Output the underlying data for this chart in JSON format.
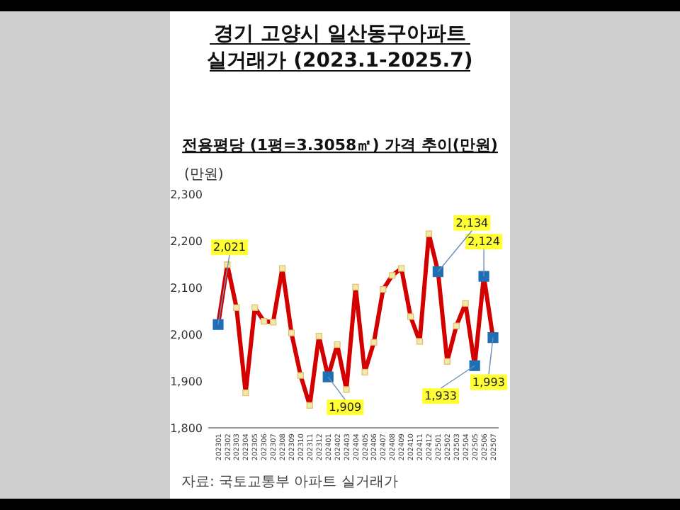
{
  "chart_data": {
    "type": "line",
    "title": "경기 고양시 일산동구아파트 실거래가 (2023.1-2025.7)",
    "subtitle": "전용평당 (1평=3.3058㎡) 가격 추이(만원)",
    "ylabel": "(만원)",
    "annotations": [
      "자료: 국토교통부 아파트 실거래가"
    ],
    "categories": [
      "202301",
      "202302",
      "202303",
      "202304",
      "202305",
      "202306",
      "202307",
      "202308",
      "202309",
      "202310",
      "202311",
      "202312",
      "202401",
      "202402",
      "202403",
      "202404",
      "202405",
      "202406",
      "202407",
      "202408",
      "202409",
      "202410",
      "202411",
      "202412",
      "202501",
      "202502",
      "202503",
      "202504",
      "202505",
      "202506",
      "202507"
    ],
    "series": [
      {
        "color": "#d40000",
        "values": [
          2021,
          2149,
          2057,
          1875,
          2057,
          2028,
          2026,
          2141,
          2003,
          1912,
          1848,
          1996,
          1909,
          1978,
          1882,
          2101,
          1919,
          1983,
          2096,
          2126,
          2141,
          2038,
          1985,
          2215,
          2134,
          1942,
          2018,
          2066,
          1933,
          2124,
          1993
        ],
        "colors": [
          "#1f6fb5",
          "#f3e7b0",
          "#f3e7b0",
          "#f3e7b0",
          "#f3e7b0",
          "#f3e7b0",
          "#f3e7b0",
          "#f3e7b0",
          "#f3e7b0",
          "#f3e7b0",
          "#f3e7b0",
          "#f3e7b0",
          "#1f6fb5",
          "#f3e7b0",
          "#f3e7b0",
          "#f3e7b0",
          "#f3e7b0",
          "#f3e7b0",
          "#f3e7b0",
          "#f3e7b0",
          "#f3e7b0",
          "#f3e7b0",
          "#f3e7b0",
          "#f3e7b0",
          "#1f6fb5",
          "#f3e7b0",
          "#f3e7b0",
          "#f3e7b0",
          "#1f6fb5",
          "#1f6fb5",
          "#1f6fb5"
        ],
        "value_labels": [
          "2,021",
          null,
          null,
          null,
          null,
          null,
          null,
          null,
          null,
          null,
          null,
          null,
          "1,909",
          null,
          null,
          null,
          null,
          null,
          null,
          null,
          null,
          null,
          null,
          null,
          "2,134",
          null,
          null,
          null,
          "1,933",
          "2,124",
          "1,993"
        ]
      }
    ],
    "ylim": [
      1800,
      2300
    ],
    "yticks": [
      {
        "value": 1800,
        "label": "1,800"
      },
      {
        "value": 1900,
        "label": "1,900"
      },
      {
        "value": 2000,
        "label": "2,000"
      },
      {
        "value": 2100,
        "label": "2,100"
      },
      {
        "value": 2200,
        "label": "2,200"
      },
      {
        "value": 2300,
        "label": "2,300"
      }
    ],
    "marker": "square",
    "line_style": "solid",
    "grid": false
  }
}
